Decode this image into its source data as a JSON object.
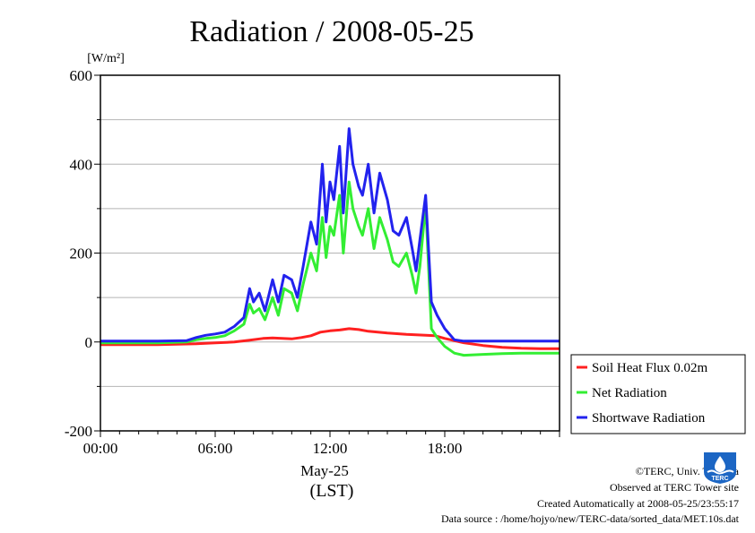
{
  "chart_data": {
    "type": "line",
    "title": "Radiation / 2008-05-25",
    "ylabel": "[W/m²]",
    "ylim": [
      -200,
      600
    ],
    "yticks": [
      600,
      400,
      200,
      0,
      -200
    ],
    "xlim": [
      0,
      24
    ],
    "xticks": [
      {
        "h": 0,
        "label": "00:00"
      },
      {
        "h": 6,
        "label": "06:00"
      },
      {
        "h": 12,
        "label": "12:00"
      },
      {
        "h": 18,
        "label": "18:00"
      }
    ],
    "xlabel_date": "May-25",
    "xlabel_tz": "(LST)",
    "grid": true,
    "legend_position": "bottom-right outside",
    "series": [
      {
        "name": "Soil Heat Flux 0.02m",
        "color": "#ff2020",
        "x": [
          0,
          3,
          5,
          6,
          7,
          7.8,
          8.5,
          9,
          10,
          10.5,
          11,
          11.5,
          12,
          12.5,
          13,
          13.5,
          14,
          15,
          16,
          17,
          17.5,
          18,
          19,
          20,
          21,
          22,
          23,
          24
        ],
        "values": [
          -6,
          -6,
          -4,
          -2,
          0,
          4,
          8,
          9,
          7,
          10,
          14,
          22,
          25,
          27,
          30,
          28,
          24,
          20,
          17,
          15,
          14,
          8,
          -2,
          -8,
          -12,
          -14,
          -15,
          -15
        ]
      },
      {
        "name": "Net Radiation",
        "color": "#33ee33",
        "x": [
          0,
          3,
          4.5,
          5,
          5.5,
          6,
          6.5,
          7,
          7.5,
          7.8,
          8,
          8.3,
          8.6,
          9,
          9.3,
          9.6,
          10,
          10.3,
          10.6,
          11,
          11.3,
          11.6,
          11.8,
          12,
          12.2,
          12.5,
          12.7,
          13,
          13.2,
          13.5,
          13.7,
          14,
          14.3,
          14.6,
          15,
          15.3,
          15.6,
          16,
          16.3,
          16.5,
          16.7,
          17,
          17.3,
          17.6,
          18,
          18.5,
          19,
          20,
          21,
          22,
          23,
          24
        ],
        "values": [
          -2,
          -2,
          0,
          5,
          8,
          10,
          14,
          25,
          40,
          85,
          65,
          75,
          50,
          100,
          60,
          120,
          110,
          70,
          130,
          200,
          160,
          280,
          190,
          260,
          240,
          330,
          200,
          360,
          300,
          260,
          240,
          300,
          210,
          280,
          230,
          180,
          170,
          200,
          150,
          110,
          170,
          310,
          30,
          10,
          -10,
          -25,
          -30,
          -28,
          -26,
          -25,
          -25,
          -25
        ]
      },
      {
        "name": "Shortwave Radiation",
        "color": "#2222ee",
        "x": [
          0,
          3,
          4.5,
          5,
          5.5,
          6,
          6.5,
          7,
          7.5,
          7.8,
          8,
          8.3,
          8.6,
          9,
          9.3,
          9.6,
          10,
          10.3,
          10.6,
          11,
          11.3,
          11.6,
          11.8,
          12,
          12.2,
          12.5,
          12.7,
          13,
          13.2,
          13.5,
          13.7,
          14,
          14.3,
          14.6,
          15,
          15.3,
          15.6,
          16,
          16.3,
          16.5,
          16.7,
          17,
          17.3,
          17.6,
          18,
          18.5,
          19,
          20,
          21,
          22,
          23,
          24
        ],
        "values": [
          2,
          2,
          3,
          10,
          15,
          18,
          22,
          35,
          55,
          120,
          90,
          110,
          70,
          140,
          90,
          150,
          140,
          100,
          170,
          270,
          220,
          400,
          270,
          360,
          320,
          440,
          290,
          480,
          400,
          350,
          330,
          400,
          290,
          380,
          320,
          250,
          240,
          280,
          210,
          160,
          230,
          330,
          90,
          60,
          30,
          5,
          2,
          2,
          2,
          2,
          2,
          2
        ]
      }
    ]
  },
  "credits": {
    "copyright": "©TERC, Univ. Tsukuba",
    "observed": "Observed at TERC Tower site",
    "created": "Created Automatically at 2008-05-25/23:55:17",
    "source": "Data source : /home/hojyo/new/TERC-data/sorted_data/MET.10s.dat"
  },
  "logo": {
    "icon": "terc-logo-icon",
    "text": "TERC",
    "color": "#1c66c4"
  }
}
